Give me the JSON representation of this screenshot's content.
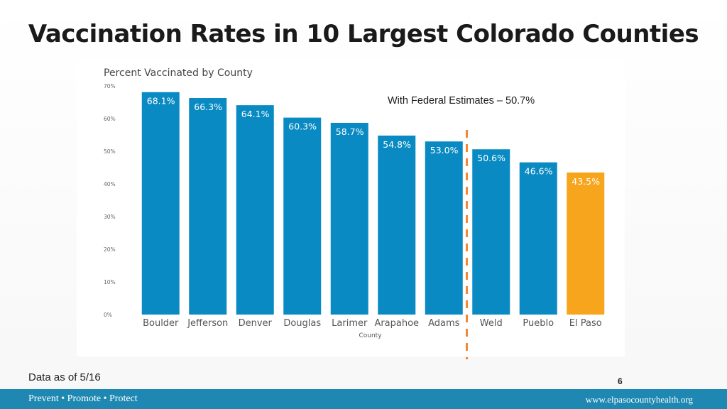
{
  "slide": {
    "title": "Vaccination Rates in 10 Largest Colorado Counties",
    "footnote": "Data as of 5/16",
    "page_number": "6"
  },
  "footer": {
    "tagline": "Prevent • Promote • Protect",
    "website": "www.elpasocountyhealth.org",
    "color": "#1f88b2"
  },
  "chart_data": {
    "type": "bar",
    "title": "Percent Vaccinated by County",
    "xlabel": "County",
    "ylabel": "",
    "ylim": [
      0,
      70
    ],
    "yticks": [
      0,
      10,
      20,
      30,
      40,
      50,
      60,
      70
    ],
    "ytick_labels": [
      "0%",
      "10%",
      "20%",
      "30%",
      "40%",
      "50%",
      "60%",
      "70%"
    ],
    "categories": [
      "Boulder",
      "Jefferson",
      "Denver",
      "Douglas",
      "Larimer",
      "Arapahoe",
      "Adams",
      "Weld",
      "Pueblo",
      "El Paso"
    ],
    "values": [
      68.1,
      66.3,
      64.1,
      60.3,
      58.7,
      54.8,
      53.0,
      50.6,
      46.6,
      43.5
    ],
    "value_labels": [
      "68.1%",
      "66.3%",
      "64.1%",
      "60.3%",
      "58.7%",
      "54.8%",
      "53.0%",
      "50.6%",
      "46.6%",
      "43.5%"
    ],
    "bar_color": "#0a8ac2",
    "highlight_color": "#f7a51c",
    "highlight_category": "El Paso",
    "reference": {
      "label": "With Federal Estimates – 50.7%",
      "value": 50.7,
      "between": [
        "Adams",
        "Weld"
      ],
      "color": "#ef8a3a"
    }
  }
}
